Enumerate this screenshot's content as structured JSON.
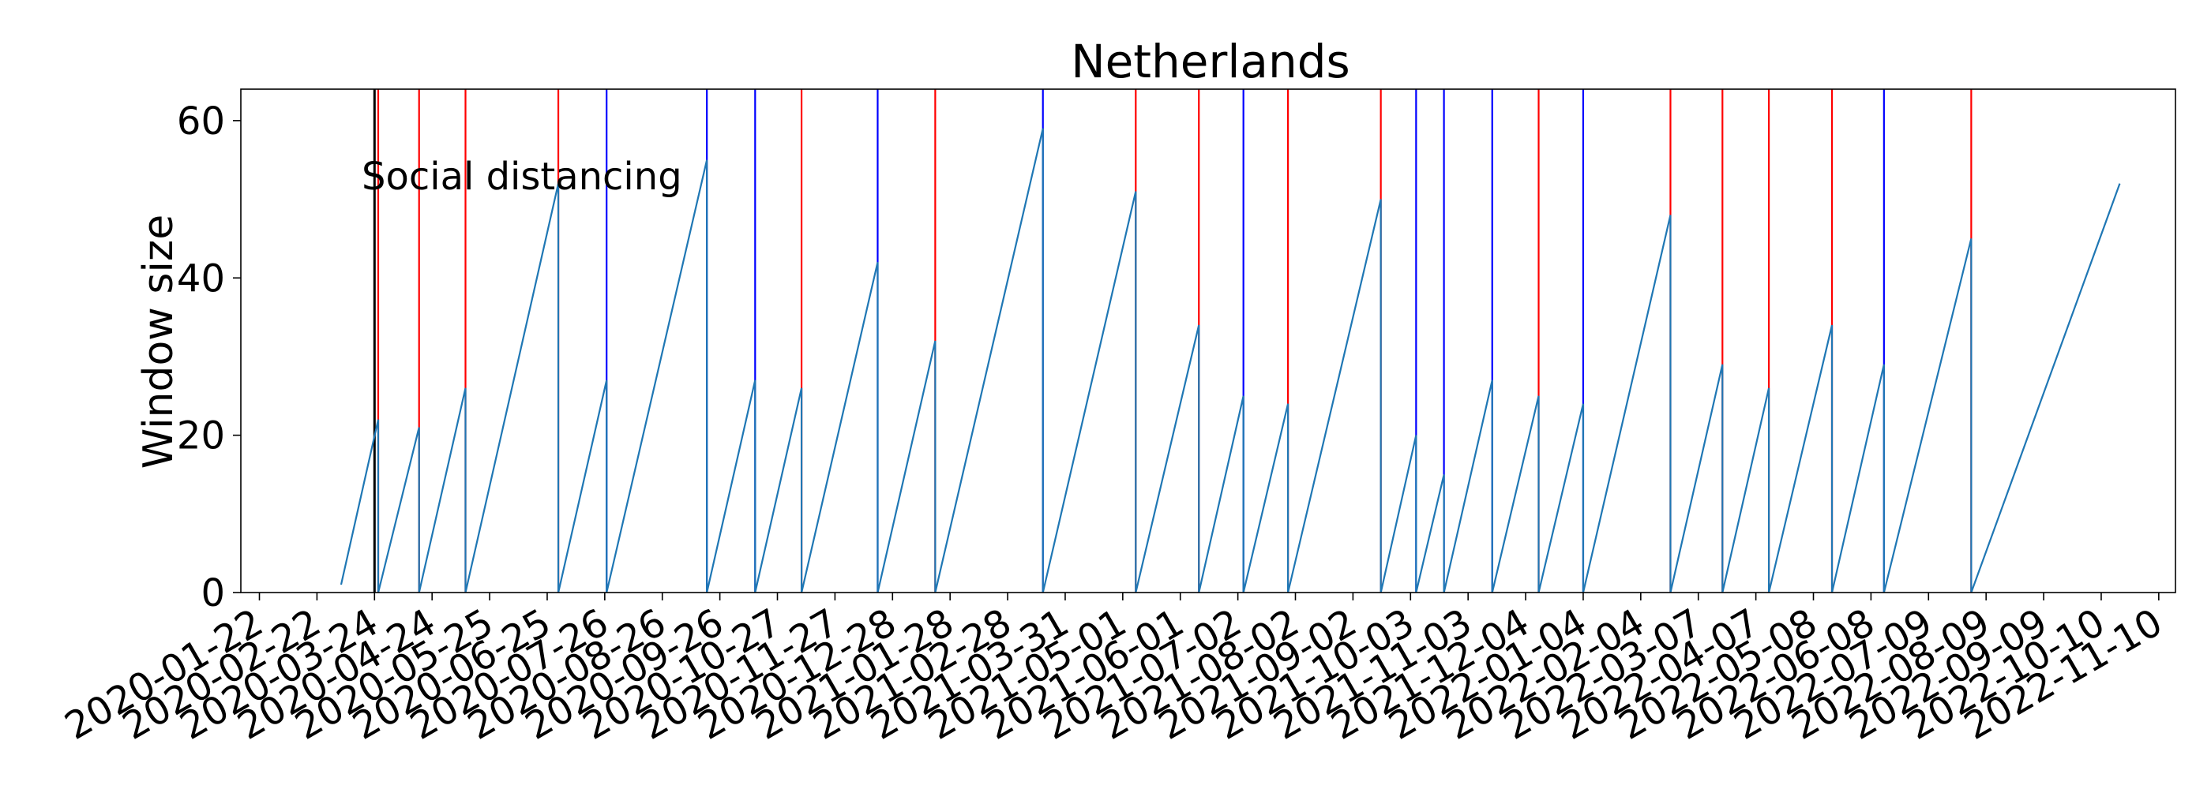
{
  "chart_data": {
    "type": "line",
    "title": "Netherlands",
    "xlabel": "",
    "ylabel": "Window size",
    "ylim": [
      0,
      64
    ],
    "xlim": [
      "2020-01-12",
      "2022-11-19"
    ],
    "y_ticks": [
      0,
      20,
      40,
      60
    ],
    "x_ticks": [
      "2020-01-22",
      "2020-02-22",
      "2020-03-24",
      "2020-04-24",
      "2020-05-25",
      "2020-06-25",
      "2020-07-26",
      "2020-08-26",
      "2020-09-26",
      "2020-10-27",
      "2020-11-27",
      "2020-12-28",
      "2021-01-28",
      "2021-02-28",
      "2021-03-31",
      "2021-05-01",
      "2021-06-01",
      "2021-07-02",
      "2021-08-02",
      "2021-09-02",
      "2021-10-03",
      "2021-11-03",
      "2021-12-04",
      "2022-01-04",
      "2022-02-04",
      "2022-03-07",
      "2022-04-07",
      "2022-05-08",
      "2022-06-08",
      "2022-07-09",
      "2022-08-09",
      "2022-09-09",
      "2022-10-10",
      "2022-11-10"
    ],
    "grid": false,
    "colors": {
      "window_line": "#1f77b4",
      "red_marker": "#ff0000",
      "blue_marker": "#0000ff",
      "event_marker": "#000000"
    },
    "series": [
      {
        "points": [
          [
            "2020-03-06",
            1
          ],
          [
            "2020-03-26",
            22
          ],
          [
            "2020-03-26",
            0
          ],
          [
            "2020-04-17",
            21
          ],
          [
            "2020-04-17",
            0
          ],
          [
            "2020-05-12",
            26
          ],
          [
            "2020-05-12",
            0
          ],
          [
            "2020-07-01",
            52
          ],
          [
            "2020-07-01",
            0
          ],
          [
            "2020-07-27",
            27
          ],
          [
            "2020-07-27",
            0
          ],
          [
            "2020-09-19",
            55
          ],
          [
            "2020-09-19",
            0
          ],
          [
            "2020-10-15",
            27
          ],
          [
            "2020-10-15",
            0
          ],
          [
            "2020-11-09",
            26
          ],
          [
            "2020-11-09",
            0
          ],
          [
            "2020-12-20",
            42
          ],
          [
            "2020-12-20",
            0
          ],
          [
            "2021-01-20",
            32
          ],
          [
            "2021-01-20",
            0
          ],
          [
            "2021-03-19",
            59
          ],
          [
            "2021-03-19",
            0
          ],
          [
            "2021-05-08",
            51
          ],
          [
            "2021-05-08",
            0
          ],
          [
            "2021-06-11",
            34
          ],
          [
            "2021-06-11",
            0
          ],
          [
            "2021-07-05",
            25
          ],
          [
            "2021-07-05",
            0
          ],
          [
            "2021-07-29",
            24
          ],
          [
            "2021-07-29",
            0
          ],
          [
            "2021-09-17",
            50
          ],
          [
            "2021-09-17",
            0
          ],
          [
            "2021-10-06",
            20
          ],
          [
            "2021-10-06",
            0
          ],
          [
            "2021-10-21",
            15
          ],
          [
            "2021-10-21",
            0
          ],
          [
            "2021-11-16",
            27
          ],
          [
            "2021-11-16",
            0
          ],
          [
            "2021-12-11",
            25
          ],
          [
            "2021-12-11",
            0
          ],
          [
            "2022-01-04",
            24
          ],
          [
            "2022-01-04",
            0
          ],
          [
            "2022-02-20",
            48
          ],
          [
            "2022-02-20",
            0
          ],
          [
            "2022-03-20",
            29
          ],
          [
            "2022-03-20",
            0
          ],
          [
            "2022-04-14",
            26
          ],
          [
            "2022-04-14",
            0
          ],
          [
            "2022-05-18",
            34
          ],
          [
            "2022-05-18",
            0
          ],
          [
            "2022-06-15",
            29
          ],
          [
            "2022-06-15",
            0
          ],
          [
            "2022-08-01",
            45
          ],
          [
            "2022-08-01",
            0
          ],
          [
            "2022-10-20",
            52
          ]
        ]
      }
    ],
    "event_line": {
      "date": "2020-03-24",
      "label": "Social distancing"
    },
    "red_markers": [
      "2020-03-26",
      "2020-04-17",
      "2020-05-12",
      "2020-07-01",
      "2020-11-09",
      "2021-01-20",
      "2021-05-08",
      "2021-06-11",
      "2021-07-29",
      "2021-09-17",
      "2021-12-11",
      "2022-02-20",
      "2022-03-20",
      "2022-04-14",
      "2022-05-18",
      "2022-08-01"
    ],
    "blue_markers": [
      "2020-07-27",
      "2020-09-19",
      "2020-10-15",
      "2020-12-20",
      "2021-03-19",
      "2021-07-05",
      "2021-10-06",
      "2021-10-21",
      "2021-11-16",
      "2022-01-04",
      "2022-06-15"
    ]
  }
}
